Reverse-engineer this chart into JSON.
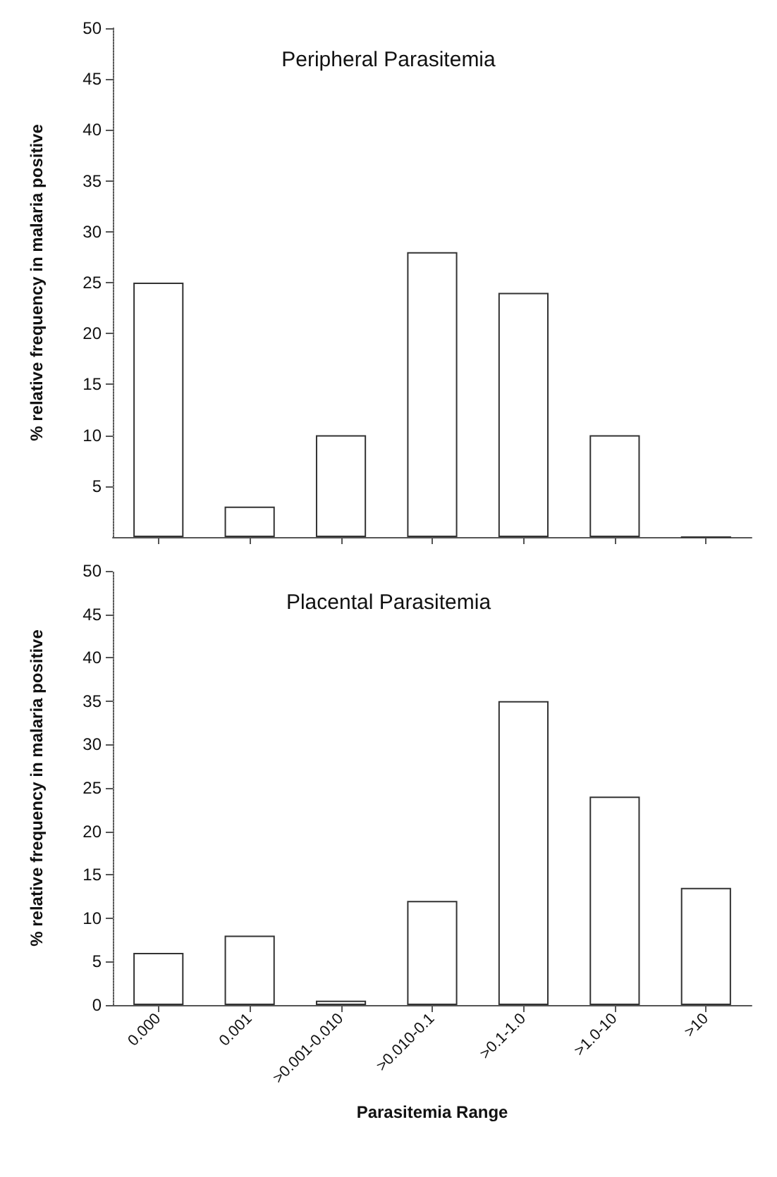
{
  "chart_data": [
    {
      "type": "bar",
      "title": "Peripheral Parasitemia",
      "ylabel": "% relative frequency in malaria positive",
      "categories": [
        null,
        null,
        null,
        null,
        null,
        null,
        null
      ],
      "values": [
        25,
        3,
        10,
        28,
        24,
        10,
        0
      ],
      "color": "#333333",
      "ylim": [
        0,
        50
      ],
      "yticks": [
        5,
        10,
        15,
        20,
        25,
        30,
        35,
        40,
        45,
        50
      ],
      "grid": false
    },
    {
      "type": "bar",
      "title": "Placental Parasitemia",
      "ylabel": "% relative frequency in malaria positive",
      "xlabel": "Parasitemia Range",
      "categories": [
        "0.000",
        "0.001",
        ">0.001-0.010",
        ">0.010-0.1",
        ">0.1-1.0",
        ">1.0-10",
        ">10"
      ],
      "values": [
        6,
        8,
        0.5,
        12,
        35,
        24,
        13.5
      ],
      "color": "#333333",
      "ylim": [
        0,
        50
      ],
      "yticks": [
        0,
        5,
        10,
        15,
        20,
        25,
        30,
        35,
        40,
        45,
        50
      ],
      "grid": false
    }
  ]
}
